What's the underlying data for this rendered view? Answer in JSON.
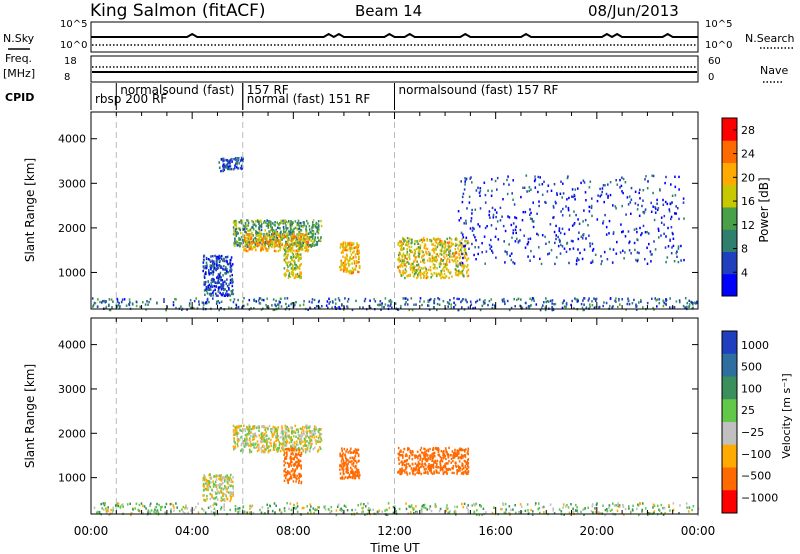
{
  "header": {
    "station": "King Salmon (fitACF)",
    "beam": "Beam 14",
    "date": "08/Jun/2013"
  },
  "strips": {
    "nsky": {
      "left_label": "N.Sky",
      "left_ticks": [
        "10^5",
        "10^0"
      ],
      "right_label": "N.Search",
      "right_ticks": [
        "10^5",
        "10^0"
      ]
    },
    "freq": {
      "left_label_1": "Freq.",
      "left_label_2": "[MHz]",
      "left_ticks": [
        "18",
        "8"
      ],
      "right_label": "Nave",
      "right_ticks": [
        "60",
        "0"
      ]
    },
    "cpid": {
      "label": "CPID",
      "segments": [
        {
          "label": "rbsp 200 RF",
          "start_hour": 0.0,
          "row": 2
        },
        {
          "label": "normalsound (fast)",
          "start_hour": 1.0,
          "row": 1
        },
        {
          "label": "157 RF",
          "start_hour": 6.0,
          "row": 1
        },
        {
          "label": "normal (fast) 151 RF",
          "start_hour": 6.0,
          "row": 2
        },
        {
          "label": "normalsound (fast) 157 RF",
          "start_hour": 12.0,
          "row": 1
        }
      ]
    }
  },
  "chart_data": [
    {
      "type": "heatmap",
      "panel": "power",
      "ylabel": "Slant Range [km]",
      "xlim_hours": [
        0,
        24
      ],
      "ylim_km": [
        180,
        4600
      ],
      "yticks": [
        1000,
        2000,
        3000,
        4000
      ],
      "colorbar": {
        "label": "Power [dB]",
        "ticks": [
          4,
          8,
          12,
          16,
          20,
          24,
          28
        ],
        "range": [
          0,
          30
        ],
        "colors": [
          "#0000ff",
          "#1f3fbf",
          "#2f7f6f",
          "#49a049",
          "#c8c800",
          "#ffaa00",
          "#ff6a00",
          "#ff0000"
        ]
      },
      "regions": [
        {
          "t": [
            5.6,
            9.1
          ],
          "r": [
            1600,
            2200
          ],
          "level": 12
        },
        {
          "t": [
            6.0,
            8.6
          ],
          "r": [
            1500,
            1900
          ],
          "level": 20
        },
        {
          "t": [
            7.6,
            8.3
          ],
          "r": [
            900,
            1700
          ],
          "level": 16
        },
        {
          "t": [
            9.8,
            10.6
          ],
          "r": [
            1000,
            1700
          ],
          "level": 20
        },
        {
          "t": [
            12.1,
            14.9
          ],
          "r": [
            900,
            1800
          ],
          "level": 18
        },
        {
          "t": [
            4.4,
            5.6
          ],
          "r": [
            500,
            1400
          ],
          "level": 6
        },
        {
          "t": [
            5.0,
            6.0
          ],
          "r": [
            3300,
            3600
          ],
          "level": 6
        },
        {
          "t": [
            14.5,
            23.5
          ],
          "r": [
            1200,
            3200
          ],
          "level": 5
        },
        {
          "t": [
            0,
            24
          ],
          "r": [
            180,
            450
          ],
          "level": 8
        }
      ]
    },
    {
      "type": "heatmap",
      "panel": "velocity",
      "ylabel": "Slant Range [km]",
      "xlabel": "Time UT",
      "xlim_hours": [
        0,
        24
      ],
      "ylim_km": [
        180,
        4600
      ],
      "yticks": [
        1000,
        2000,
        3000,
        4000
      ],
      "xtick_labels": [
        "00:00",
        "04:00",
        "08:00",
        "12:00",
        "16:00",
        "20:00",
        "00:00"
      ],
      "colorbar": {
        "label": "Velocity [m s⁻¹]",
        "tick_labels": [
          "1000",
          "500",
          "100",
          "25",
          "−25",
          "−100",
          "−500",
          "−1000"
        ],
        "colors": [
          "#1f3fbf",
          "#2f6f9f",
          "#3a8f5a",
          "#62c84a",
          "#c0c0c0",
          "#ffaa00",
          "#ff6a00",
          "#ff0000"
        ]
      },
      "regions": [
        {
          "t": [
            5.6,
            9.1
          ],
          "r": [
            1600,
            2200
          ],
          "level": 0
        },
        {
          "t": [
            7.6,
            8.3
          ],
          "r": [
            900,
            1700
          ],
          "level": -200
        },
        {
          "t": [
            9.8,
            10.6
          ],
          "r": [
            1000,
            1700
          ],
          "level": -400
        },
        {
          "t": [
            12.1,
            14.9
          ],
          "r": [
            1100,
            1700
          ],
          "level": -300
        },
        {
          "t": [
            4.4,
            5.6
          ],
          "r": [
            500,
            1100
          ],
          "level": 0
        },
        {
          "t": [
            0,
            24
          ],
          "r": [
            180,
            450
          ],
          "level": 50
        }
      ]
    }
  ]
}
